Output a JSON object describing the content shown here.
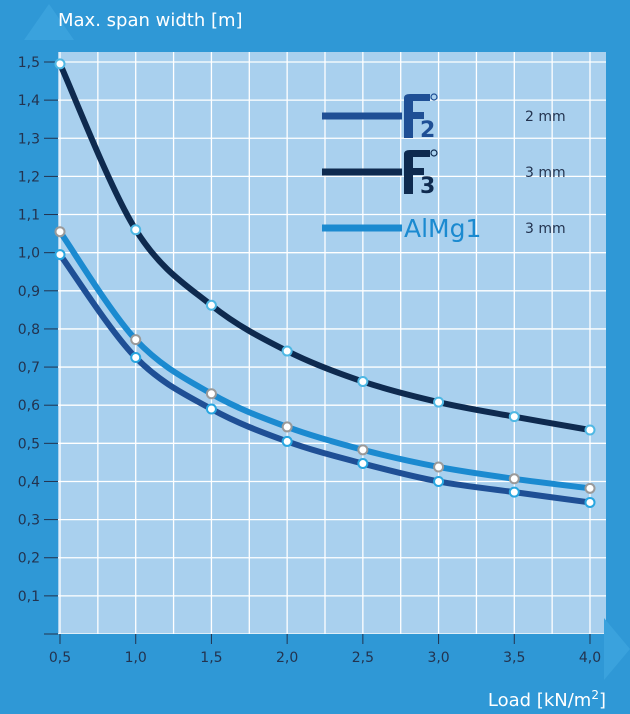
{
  "chart_data": {
    "type": "line",
    "ylabel": "Max. span width [m]",
    "xlabel": "Load [kN/m²]",
    "xlabel_main": "Load [kN/m",
    "xlabel_sup": "2",
    "xlabel_end": "]",
    "xlim": [
      0.5,
      4.0
    ],
    "ylim": [
      0,
      1.5
    ],
    "x_ticks": [
      "0,5",
      "1,0",
      "1,5",
      "2,0",
      "2,5",
      "3,0",
      "3,5",
      "4,0"
    ],
    "y_ticks": [
      "0,1",
      "0,2",
      "0,3",
      "0,4",
      "0,5",
      "0,6",
      "0,7",
      "0,8",
      "0,9",
      "1,0",
      "1,1",
      "1,2",
      "1,3",
      "1,4",
      "1,5"
    ],
    "grid": true,
    "legend_position": "top-right",
    "x": [
      0.5,
      1.0,
      1.5,
      2.0,
      2.5,
      3.0,
      3.5,
      4.0
    ],
    "series": [
      {
        "key": "f2",
        "label_icon": "f2-logo-icon",
        "thickness": "2 mm",
        "color": "#1f4f95",
        "marker_color": "#28a6e0",
        "values": [
          0.995,
          0.725,
          0.59,
          0.505,
          0.447,
          0.4,
          0.372,
          0.345
        ]
      },
      {
        "key": "f3",
        "label_icon": "f3-logo-icon",
        "thickness": "3 mm",
        "color": "#0e2a4f",
        "marker_color": "#4fb8e4",
        "values": [
          1.495,
          1.06,
          0.862,
          0.742,
          0.662,
          0.608,
          0.57,
          0.535
        ]
      },
      {
        "key": "almg1",
        "name": "AlMg1",
        "thickness": "3 mm",
        "color": "#1b8ad0",
        "marker_color": "#9a9a9a",
        "values": [
          1.055,
          0.772,
          0.63,
          0.543,
          0.483,
          0.438,
          0.407,
          0.382
        ]
      }
    ],
    "colors": {
      "background": "#2f98d6",
      "plot": "#a9d0ee",
      "grid": "#ffffff",
      "tick_text": "#23334f",
      "axis": "#2f98d6"
    }
  }
}
